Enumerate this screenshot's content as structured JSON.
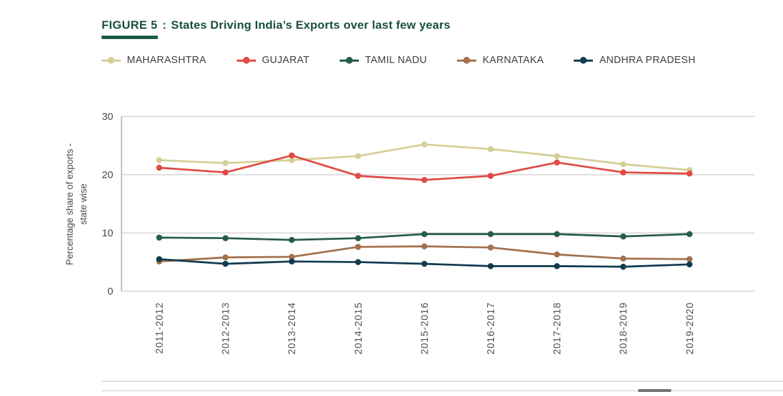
{
  "figure": {
    "label": "FIGURE 5",
    "separator": ":",
    "title": "States Driving India’s Exports over last few years"
  },
  "theme": {
    "title_color": "#174f3e",
    "figure_bar_color": "#1a5c40",
    "grid_color": "#cccccc",
    "axis_color": "#a8a8a8",
    "tick_color": "#4a4a4a"
  },
  "chart_data": {
    "type": "line",
    "title": "States Driving India’s Exports over last few years",
    "ylabel": "Percentage share of exports - state wise",
    "ylabel_lines": [
      "Percentage share of exports -",
      "state wise"
    ],
    "categories": [
      "2011-2012",
      "2012-2013",
      "2013-2014",
      "2014-2015",
      "2015-2016",
      "2016-2017",
      "2017-2018",
      "2018-2019",
      "2019-2020"
    ],
    "series": [
      {
        "name": "MAHARASHTRA",
        "color": "#d4cf96",
        "values": [
          22.5,
          22.0,
          22.5,
          23.2,
          25.2,
          24.4,
          23.2,
          21.8,
          20.8
        ]
      },
      {
        "name": "GUJARAT",
        "color": "#e04b44",
        "values": [
          21.2,
          20.4,
          23.3,
          19.8,
          19.1,
          19.8,
          22.1,
          20.4,
          20.2
        ]
      },
      {
        "name": "TAMIL NADU",
        "color": "#265c4b",
        "values": [
          9.2,
          9.1,
          8.8,
          9.1,
          9.8,
          9.8,
          9.8,
          9.4,
          9.8
        ]
      },
      {
        "name": "KARNATAKA",
        "color": "#a2714d",
        "values": [
          5.1,
          5.8,
          5.9,
          7.6,
          7.7,
          7.5,
          6.3,
          5.6,
          5.5
        ]
      },
      {
        "name": "ANDHRA PRADESH",
        "color": "#113c50",
        "values": [
          5.5,
          4.7,
          5.1,
          5.0,
          4.7,
          4.3,
          4.3,
          4.2,
          4.6
        ]
      }
    ],
    "ylim": [
      0,
      30
    ],
    "yticks": [
      0,
      10,
      20,
      30
    ],
    "grid": true,
    "legend_position": "top"
  }
}
